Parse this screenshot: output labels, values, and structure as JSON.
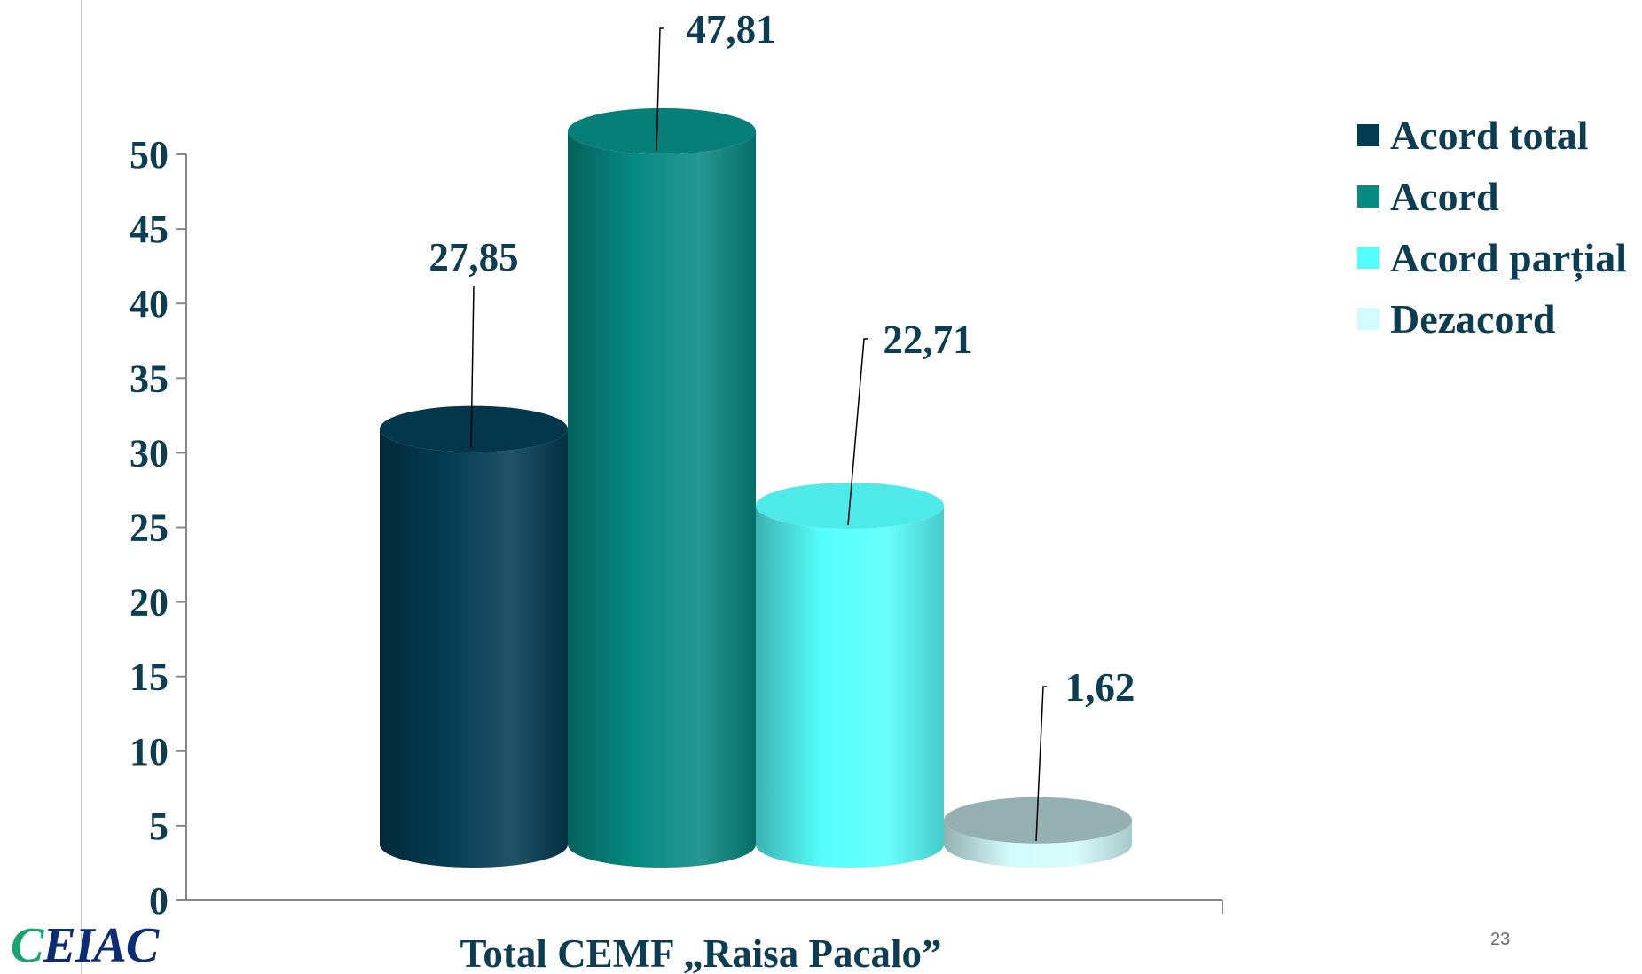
{
  "chart_data": {
    "type": "bar",
    "style": "3d-cylinder",
    "categories": [
      "Total CEMF „Raisa Pacalo”"
    ],
    "xlabel": "Total CEMF „Raisa Pacalo”",
    "ylabel": "",
    "ylim": [
      0,
      50
    ],
    "yticks": [
      "0",
      "5",
      "10",
      "15",
      "20",
      "25",
      "30",
      "35",
      "40",
      "45",
      "50"
    ],
    "grid": false,
    "legend_position": "right",
    "series": [
      {
        "name": "Acord total",
        "values": [
          27.85
        ],
        "label": "27,85",
        "color": "#033c52"
      },
      {
        "name": "Acord",
        "values": [
          47.81
        ],
        "label": "47,81",
        "color": "#078a82"
      },
      {
        "name": "Acord parțial",
        "values": [
          22.71
        ],
        "label": "22,71",
        "color": "#55fefd"
      },
      {
        "name": "Dezacord",
        "values": [
          1.62
        ],
        "label": "1,62",
        "color": "#d3fbfb"
      }
    ]
  },
  "footer": {
    "logo_text": "CEIAC",
    "page_number": "23"
  }
}
